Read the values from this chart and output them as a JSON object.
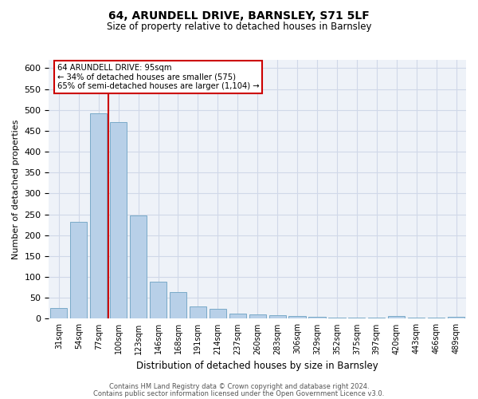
{
  "title_line1": "64, ARUNDELL DRIVE, BARNSLEY, S71 5LF",
  "title_line2": "Size of property relative to detached houses in Barnsley",
  "xlabel": "Distribution of detached houses by size in Barnsley",
  "ylabel": "Number of detached properties",
  "categories": [
    "31sqm",
    "54sqm",
    "77sqm",
    "100sqm",
    "123sqm",
    "146sqm",
    "168sqm",
    "191sqm",
    "214sqm",
    "237sqm",
    "260sqm",
    "283sqm",
    "306sqm",
    "329sqm",
    "352sqm",
    "375sqm",
    "397sqm",
    "420sqm",
    "443sqm",
    "466sqm",
    "489sqm"
  ],
  "values": [
    25,
    232,
    492,
    470,
    248,
    88,
    63,
    30,
    23,
    13,
    11,
    9,
    7,
    4,
    2,
    2,
    2,
    6,
    2,
    2,
    5
  ],
  "bar_color": "#b8d0e8",
  "bar_edge_color": "#7aaac8",
  "annotation_text_line1": "64 ARUNDELL DRIVE: 95sqm",
  "annotation_text_line2": "← 34% of detached houses are smaller (575)",
  "annotation_text_line3": "65% of semi-detached houses are larger (1,104) →",
  "annotation_box_color": "#ffffff",
  "annotation_box_edge_color": "#cc0000",
  "ylim": [
    0,
    620
  ],
  "yticks": [
    0,
    50,
    100,
    150,
    200,
    250,
    300,
    350,
    400,
    450,
    500,
    550,
    600
  ],
  "grid_color": "#d0d8e8",
  "background_color": "#eef2f8",
  "footer_line1": "Contains HM Land Registry data © Crown copyright and database right 2024.",
  "footer_line2": "Contains public sector information licensed under the Open Government Licence v3.0."
}
